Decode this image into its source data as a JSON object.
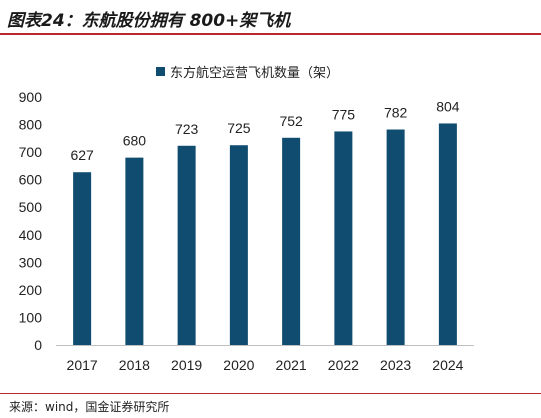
{
  "figure": {
    "title": "图表24：东航股份拥有 800+架飞机",
    "source": "来源：wind，国金证券研究所"
  },
  "colors": {
    "bar": "#0f4c6f",
    "accent_rule": "#b8282c",
    "axis": "#bfbfbf"
  },
  "chart_data": {
    "type": "bar",
    "title": "",
    "xlabel": "",
    "ylabel": "",
    "categories": [
      "2017",
      "2018",
      "2019",
      "2020",
      "2021",
      "2022",
      "2023",
      "2024"
    ],
    "series": [
      {
        "name": "东方航空运营飞机数量（架）",
        "values": [
          627,
          680,
          723,
          725,
          752,
          775,
          782,
          804
        ]
      }
    ],
    "ylim": [
      0,
      900
    ],
    "yticks": [
      0,
      100,
      200,
      300,
      400,
      500,
      600,
      700,
      800,
      900
    ],
    "grid": false,
    "legend_position": "top-center",
    "data_labels": true
  }
}
